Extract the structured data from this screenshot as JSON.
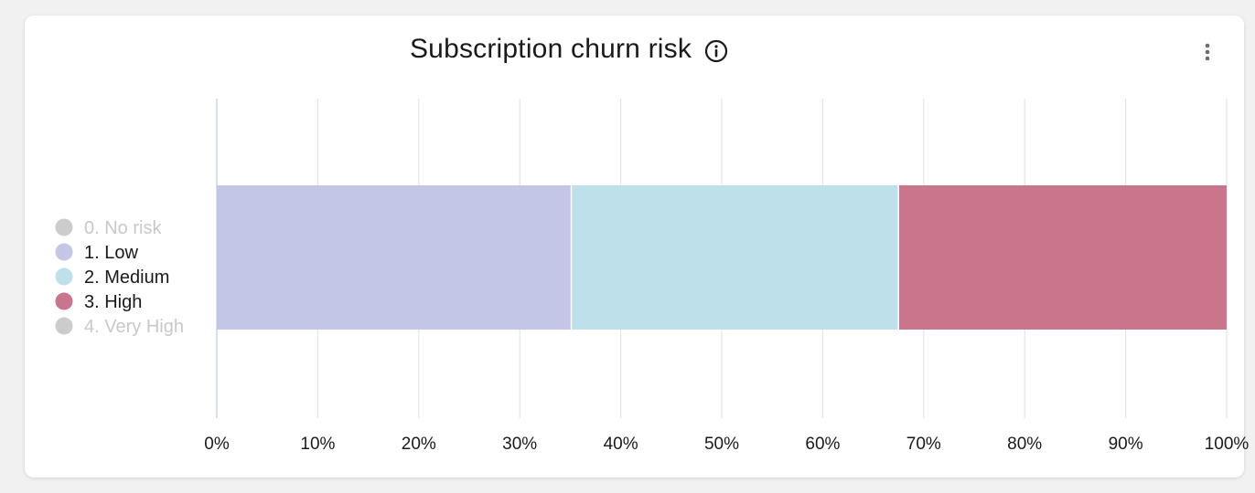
{
  "card": {
    "title": "Subscription churn risk",
    "info_icon": "info-circle-icon",
    "menu_icon": "more-vertical-icon"
  },
  "chart_data": {
    "type": "bar",
    "orientation": "horizontal",
    "stacked": "percent",
    "categories": [
      ""
    ],
    "series": [
      {
        "name": "0. No risk",
        "values": [
          0
        ],
        "color": "#cccccc",
        "hidden": true
      },
      {
        "name": "1. Low",
        "values": [
          35.1
        ],
        "color": "#c4c6e7",
        "hidden": false
      },
      {
        "name": "2. Medium",
        "values": [
          32.4
        ],
        "color": "#bee0eb",
        "hidden": false
      },
      {
        "name": "3. High",
        "values": [
          32.5
        ],
        "color": "#cb758d",
        "hidden": false
      },
      {
        "name": "4. Very High",
        "values": [
          0
        ],
        "color": "#cccccc",
        "hidden": true
      }
    ],
    "xlim": [
      0,
      100
    ],
    "xticks": [
      "0%",
      "10%",
      "20%",
      "30%",
      "40%",
      "50%",
      "60%",
      "70%",
      "80%",
      "90%",
      "100%"
    ],
    "grid": true,
    "legend_position": "left",
    "legend_hidden_color": "#cccccc",
    "legend_hidden_text_color": "#c8c8c8",
    "title": "Subscription churn risk"
  }
}
